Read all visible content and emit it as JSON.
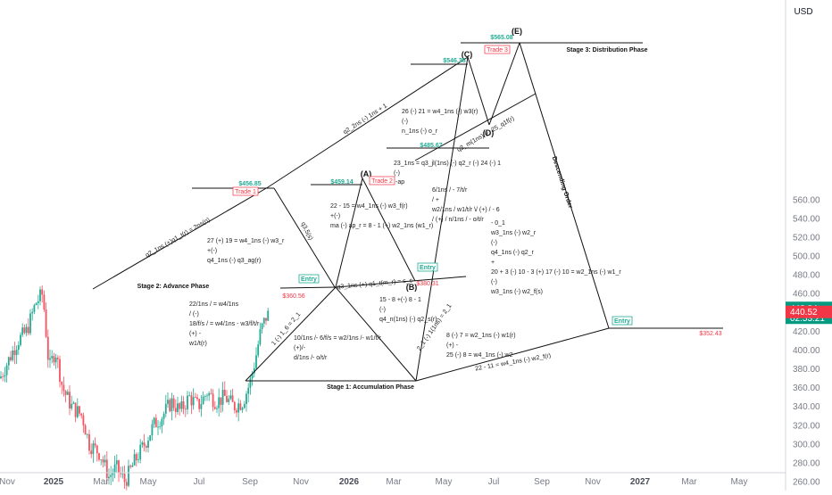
{
  "colors": {
    "up": "#22ab94",
    "down": "#f7525f",
    "line": "#111111",
    "axis_text": "#787b86",
    "price_badge": "#089981",
    "red_badge": "#f23645"
  },
  "chart_data": {
    "type": "candlestick",
    "currency": "USD",
    "ylim": [
      250,
      585
    ],
    "y_ticks": [
      "560.00",
      "540.00",
      "520.00",
      "500.00",
      "480.00",
      "460.00",
      "420.00",
      "400.00",
      "380.00",
      "360.00",
      "340.00",
      "320.00",
      "300.00",
      "280.00",
      "260.00"
    ],
    "x_ticks": [
      "Nov",
      "2025",
      "Mar",
      "May",
      "Jul",
      "Sep",
      "Nov",
      "2026",
      "Mar",
      "May",
      "Jul",
      "Sep",
      "Nov",
      "2027",
      "Mar",
      "May"
    ],
    "current_price": "443.84",
    "countdown": "02:53:21",
    "second_price": "440.52",
    "price_series_approx": {
      "months": [
        "2024-11",
        "2025-01",
        "2025-02",
        "2025-03",
        "2025-04",
        "2025-05",
        "2025-06",
        "2025-07",
        "2025-08",
        "2025-09"
      ],
      "close": [
        470,
        390,
        350,
        300,
        265,
        320,
        340,
        330,
        350,
        440
      ]
    },
    "pattern_points": [
      {
        "label": "(A)",
        "date": "2026-01",
        "price": 459.14
      },
      {
        "label": "(B)",
        "date": "2026-03",
        "price": 380.31
      },
      {
        "label": "(C)",
        "date": "2026-05",
        "price": 546.36
      },
      {
        "label": "(D)",
        "date": "2026-07",
        "price": 485.67
      },
      {
        "label": "(E)",
        "date": "2026-08",
        "price": 565.08
      }
    ],
    "price_labels": [
      "$456.85",
      "$459.14",
      "$546.36",
      "$485.67",
      "$565.08",
      "$360.56",
      "$380.31",
      "$352.43"
    ],
    "trade_labels": [
      "Trade 1",
      "Trade 2",
      "Trade 3"
    ],
    "entry_label": "Entry",
    "stages": [
      "Stage 1: Accumulation Phase",
      "Stage 2: Advance Phase",
      "Stage 3: Distribution Phase"
    ],
    "descending_order": "Descending Order",
    "line_labels": {
      "top_diag": "q2_2ns (-) 1ns + 1",
      "q3_5": "q3,5(s)",
      "stage2_diag": "q2_1ns (+)q1_t(r) = 2ns(o)",
      "q3_q1": "q3_1ns (+) q1_t(m_r) = s_c",
      "left_v": "1 (-) 1_6 = 2_1",
      "right_v": "2_1 (-) 1(1ns) = 2_1",
      "bottom_right": "22 - 11 = w4_1ns (-) w2_f(r)",
      "d_line": "q2_m(1ns) (-) 25_q1f(r)"
    },
    "formula_blocks": [
      {
        "lines": [
          "26 (-) 21 = w4_1ns (-) w3(r)",
          "(-)",
          "n_1ns (-) o_r"
        ]
      },
      {
        "lines": [
          "23_1ns = q3_jl(1ns) (-) q2_r (-) 24 (-) 1",
          "(-)"
        ]
      },
      {
        "lines": [
          "6/1ns / - 7/t/r",
          "/ +",
          "w2/1ns / w1/t/r \\/ (+) / - 6",
          "/ (+) / n/1ns / - o/t/r"
        ]
      },
      {
        "lines": [
          "- 0_1",
          "w3_1ns (-) w2_r",
          "(-)",
          "q4_1ns (-) q2_r",
          "+",
          "20 + 3 (-) 10 - 3 (+) 17 (-) 10 = w2_1ns (-) w1_r",
          "(-)",
          "w3_1ns (-) w2_f(s)"
        ]
      },
      {
        "lines": [
          "22 - 15 = w4_1ns (-) w3_f(r)",
          "+(-)",
          "ma (-) ap_r = 8 - 1 (+) w2_1ns (w1_r)"
        ]
      },
      {
        "lines": [
          "27 (+) 19 = w4_1ns (-) w3_r",
          "+(-)",
          "q4_1ns (-) q3_ag(r)"
        ]
      },
      {
        "lines": [
          "22/1ns / = w4/1ns",
          "/ (-)",
          "18/f/s / = w4/1ns - w3/f/t/r",
          "(+) -",
          "w1/t(r)"
        ]
      },
      {
        "lines": [
          "15 - 8 +(-) 8 - 1",
          "(-)",
          "q4_n(1ns) (-) q2_s(r)"
        ]
      },
      {
        "lines": [
          "10/1ns /- 6/f/s = w2/1ns /- w1/t/r",
          "(+)/-",
          "d/1ns /- o/t/r"
        ]
      },
      {
        "lines": [
          "8 (-) 7 = w2_1ns (-) w1(r)",
          "(+) -",
          "25 (-) 8 = w4_1ns (-) w2"
        ]
      },
      {
        "lines": [
          "-ap"
        ]
      }
    ]
  }
}
